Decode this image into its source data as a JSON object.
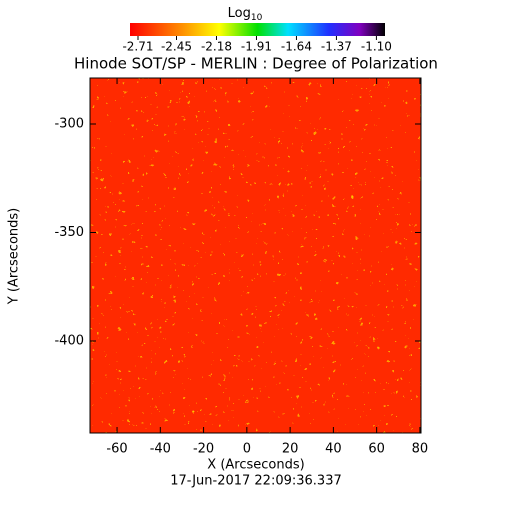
{
  "chart_data": {
    "type": "image",
    "title": "Hinode SOT/SP - MERLIN : Degree of Polarization",
    "xlabel": "X (Arcseconds)",
    "ylabel": "Y (Arcseconds)",
    "footer": "17-Jun-2017 22:09:36.337",
    "xlim": [
      -72.5,
      80.5
    ],
    "xticks": [
      -60,
      -40,
      -20,
      0,
      20,
      40,
      60,
      80
    ],
    "ylim": [
      -442.4,
      -278.8
    ],
    "yticks": [
      -300,
      -350,
      -400
    ],
    "colorbar": {
      "label": "Log",
      "label_subscript": "10",
      "lim": [
        -2.764,
        -1.042
      ],
      "ticks": [
        -2.71,
        -2.45,
        -2.18,
        -1.91,
        -1.64,
        -1.37,
        -1.1
      ],
      "tick_labels": [
        "-2.71",
        "-2.45",
        "-2.18",
        "-1.91",
        "-1.64",
        "-1.37",
        "-1.10"
      ]
    }
  }
}
